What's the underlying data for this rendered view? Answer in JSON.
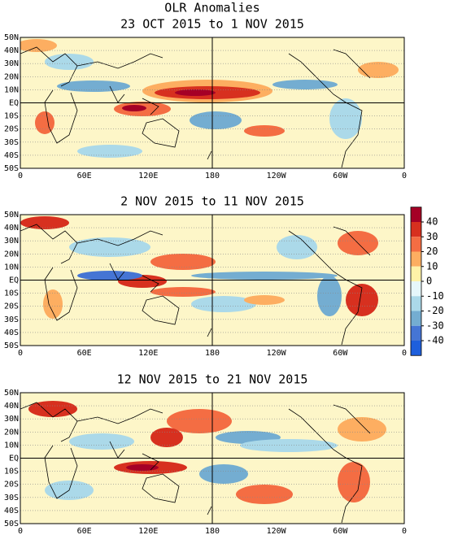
{
  "title": "OLR Anomalies",
  "panels": [
    {
      "title": "23 OCT 2015 to 1 NOV 2015"
    },
    {
      "title": "2 NOV 2015 to 11 NOV 2015"
    },
    {
      "title": "12 NOV 2015 to 21 NOV 2015"
    }
  ],
  "lat_labels": [
    "50N",
    "40N",
    "30N",
    "20N",
    "10N",
    "EQ",
    "10S",
    "20S",
    "30S",
    "40S",
    "50S"
  ],
  "lon_labels": [
    "0",
    "60E",
    "120E",
    "180",
    "120W",
    "60W",
    "0"
  ],
  "colorbar": {
    "ticks": [
      40,
      30,
      20,
      10,
      0,
      -10,
      -20,
      -30,
      -40
    ],
    "colors": [
      "#a50026",
      "#d7301f",
      "#f46d43",
      "#fdae61",
      "#fff2a8",
      "#e6f7fb",
      "#abd9e9",
      "#74add1",
      "#4575d4",
      "#1e5fdc"
    ]
  }
}
